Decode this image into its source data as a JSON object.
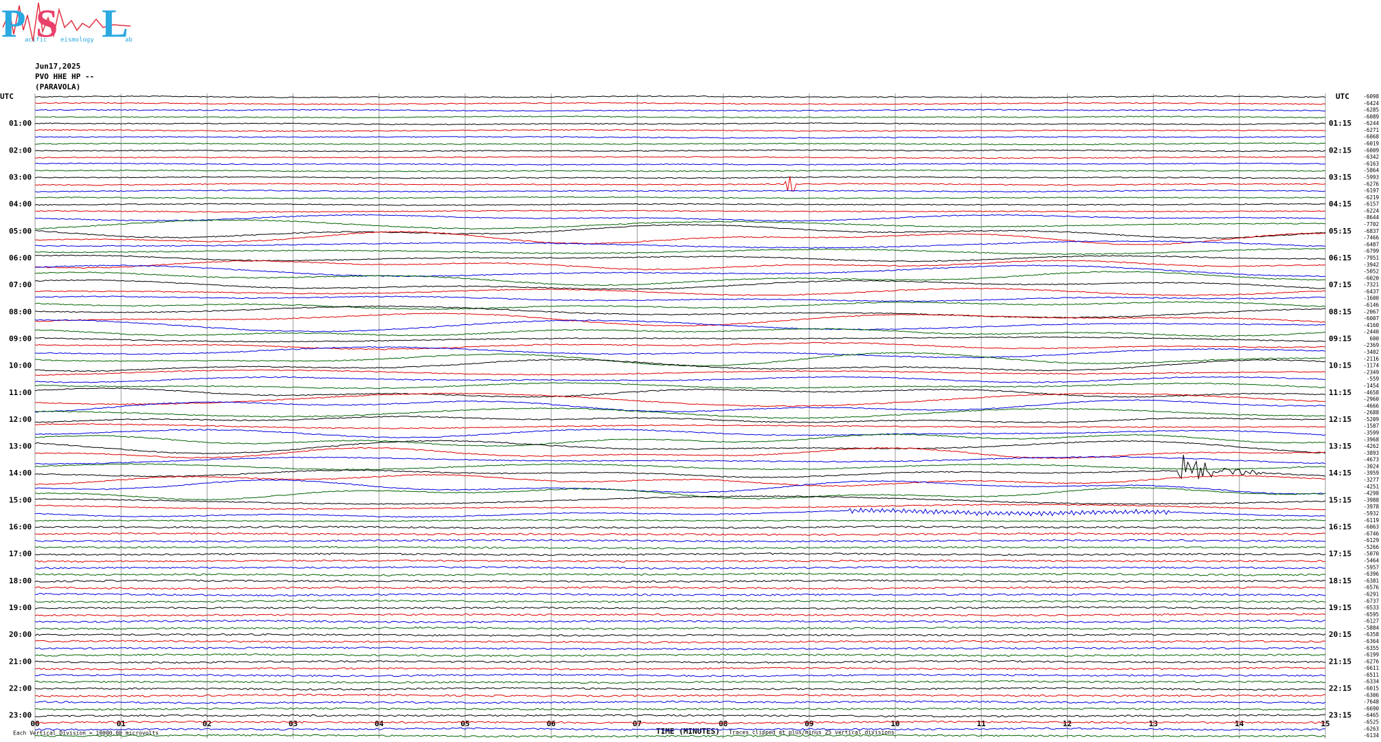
{
  "header": {
    "logo": {
      "letters": [
        "P",
        "S",
        "L"
      ],
      "words": [
        "acific",
        "eismology",
        "ab"
      ]
    },
    "date": "Jun17,2025",
    "station": "PVO HHE HP --",
    "site": "(PARAVOLA)"
  },
  "plot": {
    "xlim": [
      0,
      15
    ],
    "xticks": [
      {
        "value": 0,
        "label": "00"
      },
      {
        "value": 1,
        "label": "01"
      },
      {
        "value": 2,
        "label": "02"
      },
      {
        "value": 3,
        "label": "03"
      },
      {
        "value": 4,
        "label": "04"
      },
      {
        "value": 5,
        "label": "05"
      },
      {
        "value": 6,
        "label": "06"
      },
      {
        "value": 7,
        "label": "07"
      },
      {
        "value": 8,
        "label": "08"
      },
      {
        "value": 9,
        "label": "09"
      },
      10,
      11,
      12,
      13,
      14,
      15
    ],
    "x_label": "TIME (MINUTES)",
    "left_corner": "UTC",
    "right_corner": "UTC",
    "left_labels": [
      "01:00",
      "02:00",
      "03:00",
      "04:00",
      "05:00",
      "06:00",
      "07:00",
      "08:00",
      "09:00",
      "10:00",
      "11:00",
      "12:00",
      "13:00",
      "14:00",
      "15:00",
      "16:00",
      "17:00",
      "18:00",
      "19:00",
      "20:00",
      "21:00",
      "22:00",
      "23:00"
    ],
    "right_labels": [
      "01:15",
      "02:15",
      "03:15",
      "04:15",
      "05:15",
      "06:15",
      "07:15",
      "08:15",
      "09:15",
      "10:15",
      "11:15",
      "12:15",
      "13:15",
      "14:15",
      "15:15",
      "16:15",
      "17:15",
      "18:15",
      "19:15",
      "20:15",
      "21:15",
      "22:15",
      "23:15"
    ],
    "colors": [
      "#000000",
      "#e00000",
      "#0000e0",
      "#006400"
    ],
    "trace_offsets": [
      -6098,
      -6424,
      -6285,
      -6089,
      -6244,
      -6271,
      -6068,
      -6019,
      -6009,
      -6342,
      -6163,
      -5864,
      -5993,
      -6276,
      -6197,
      -6219,
      -6157,
      -6224,
      -8644,
      -7702,
      -6837,
      -7466,
      -6487,
      -6799,
      -7951,
      -3942,
      -5052,
      -6020,
      -7321,
      -6437,
      -1600,
      -6146,
      -2067,
      -6007,
      -4160,
      -2440,
      600,
      -2369,
      -3402,
      -2116,
      -1174,
      -2349,
      -559,
      -1454,
      -4658,
      -2960,
      -4666,
      -2688,
      -5209,
      -1587,
      -3599,
      -3968,
      -4262,
      -3893,
      -4673,
      -3024,
      -3959,
      -3277,
      -4251,
      -4298,
      -3988,
      -3978,
      -5932,
      -6119,
      -6063,
      -6746,
      -6129,
      -5266,
      -5070,
      -5464,
      -5957,
      -6396,
      -6381,
      -6576,
      -6291,
      -6737,
      -6533,
      -6595,
      -6127,
      -5884,
      -6358,
      -6364,
      -6355,
      -6199,
      -6276,
      -6611,
      -6511,
      -6334,
      -6015,
      -6306,
      -7648,
      -6690,
      -6465,
      -6525,
      -6263,
      -6134
    ]
  },
  "footer": {
    "scale_note": "Each Vertical Division = 10000.00 microvolts",
    "clip_note": "Traces clipped at plus/minus 25 vertical divisions"
  }
}
